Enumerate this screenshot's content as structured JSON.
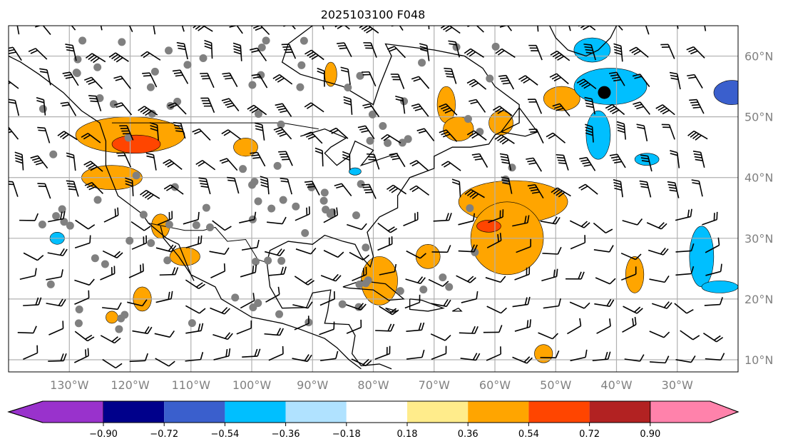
{
  "title": "2025103100 F048",
  "chart_data": {
    "type": "map",
    "title": "2025103100 F048",
    "lon_range": [
      -140,
      -20
    ],
    "lat_range": [
      8,
      65
    ],
    "x_ticks": [
      {
        "lon": -130,
        "label": "130°W"
      },
      {
        "lon": -120,
        "label": "120°W"
      },
      {
        "lon": -110,
        "label": "110°W"
      },
      {
        "lon": -100,
        "label": "100°W"
      },
      {
        "lon": -90,
        "label": "90°W"
      },
      {
        "lon": -80,
        "label": "80°W"
      },
      {
        "lon": -70,
        "label": "70°W"
      },
      {
        "lon": -60,
        "label": "60°W"
      },
      {
        "lon": -50,
        "label": "50°W"
      },
      {
        "lon": -40,
        "label": "40°W"
      },
      {
        "lon": -30,
        "label": "30°W"
      }
    ],
    "y_ticks": [
      {
        "lat": 60,
        "label": "60°N"
      },
      {
        "lat": 50,
        "label": "50°N"
      },
      {
        "lat": 40,
        "label": "40°N"
      },
      {
        "lat": 30,
        "label": "30°N"
      },
      {
        "lat": 20,
        "label": "20°N"
      },
      {
        "lat": 10,
        "label": "10°N"
      }
    ],
    "grid": true,
    "colorbar": {
      "levels": [
        "−0.90",
        "−0.72",
        "−0.54",
        "−0.36",
        "−0.18",
        "0.18",
        "0.36",
        "0.54",
        "0.72",
        "0.90"
      ],
      "colors": [
        "#9932cc",
        "#00008b",
        "#3a5fcd",
        "#00bfff",
        "#b0e2ff",
        "#ffffff",
        "#ffec8b",
        "#ffa500",
        "#ff4500",
        "#b22222",
        "#ff82ab"
      ],
      "extend": "both",
      "placement": "bottom"
    }
  }
}
